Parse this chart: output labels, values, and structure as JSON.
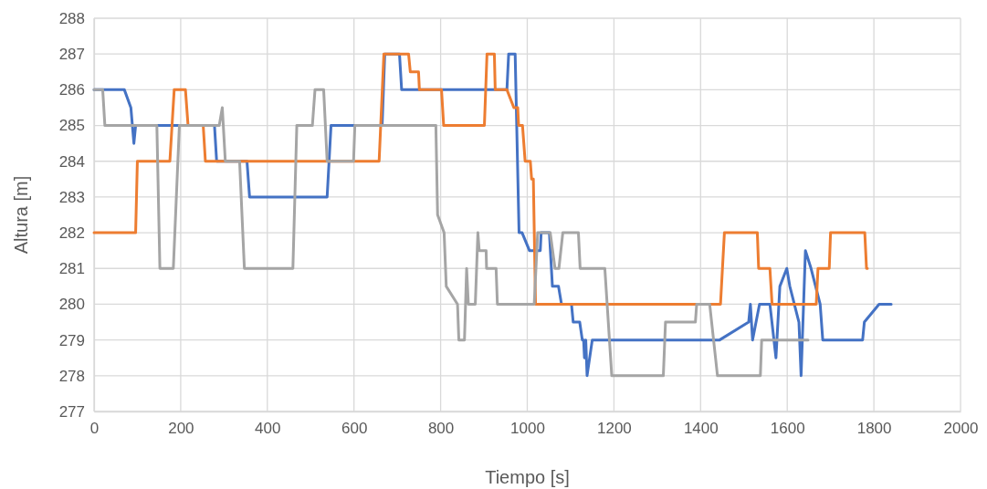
{
  "chart_data": {
    "type": "line",
    "xlabel": "Tiempo [s]",
    "ylabel": "Altura [m]",
    "xlim": [
      0,
      2000
    ],
    "xticks": [
      0,
      200,
      400,
      600,
      800,
      1000,
      1200,
      1400,
      1600,
      1800,
      2000
    ],
    "ylim": [
      277,
      288
    ],
    "yticks": [
      277,
      278,
      279,
      280,
      281,
      282,
      283,
      284,
      285,
      286,
      287,
      288
    ],
    "grid": true,
    "marker": "none",
    "line_style": "solid",
    "series": [
      {
        "color": "#4472c4",
        "x": [
          0,
          70,
          85,
          92,
          96,
          278,
          283,
          353,
          359,
          538,
          547,
          665,
          671,
          705,
          710,
          953,
          957,
          972,
          981,
          988,
          1005,
          1030,
          1032,
          1051,
          1058,
          1072,
          1079,
          1102,
          1106,
          1121,
          1127,
          1130,
          1132,
          1135,
          1138,
          1150,
          1444,
          1511,
          1515,
          1520,
          1536,
          1560,
          1574,
          1583,
          1599,
          1606,
          1627,
          1632,
          1642,
          1655,
          1676,
          1682,
          1774,
          1778,
          1812,
          1840
        ],
        "values": [
          286,
          286,
          285.5,
          284.5,
          285,
          285,
          284,
          284,
          283,
          283,
          285,
          285,
          287,
          287,
          286,
          286,
          287,
          287,
          282,
          282,
          281.5,
          281.5,
          282,
          282,
          280.5,
          280.5,
          280,
          280,
          279.5,
          279.5,
          279,
          279,
          278.5,
          279,
          278,
          279,
          279,
          279.5,
          280,
          279,
          280,
          280,
          278.5,
          280.5,
          281,
          280.5,
          279.5,
          278,
          281.5,
          281,
          280,
          279,
          279,
          279.5,
          280,
          280
        ]
      },
      {
        "color": "#ed7d31",
        "x": [
          0,
          96,
          100,
          175,
          185,
          211,
          217,
          252,
          257,
          658,
          669,
          726,
          730,
          749,
          751,
          802,
          807,
          901,
          907,
          924,
          926,
          953,
          969,
          978,
          980,
          989,
          995,
          1007,
          1010,
          1014,
          1019,
          1446,
          1455,
          1531,
          1534,
          1560,
          1565,
          1667,
          1671,
          1697,
          1700,
          1779,
          1783,
          1785
        ],
        "values": [
          282,
          282,
          284,
          284,
          286,
          286,
          285,
          285,
          284,
          284,
          287,
          287,
          286.5,
          286.5,
          286,
          286,
          285,
          285,
          287,
          287,
          286,
          286,
          285.5,
          285.5,
          285,
          285,
          284,
          284,
          283.5,
          283.5,
          280,
          280,
          282,
          282,
          281,
          281,
          280,
          280,
          281,
          281,
          282,
          282,
          281,
          281
        ]
      },
      {
        "color": "#a5a5a5",
        "x": [
          0,
          20,
          25,
          145,
          152,
          183,
          197,
          289,
          296,
          303,
          336,
          347,
          459,
          468,
          504,
          510,
          530,
          538,
          599,
          602,
          789,
          793,
          808,
          813,
          839,
          842,
          855,
          860,
          864,
          868,
          880,
          886,
          889,
          905,
          906,
          928,
          931,
          1016,
          1024,
          1053,
          1064,
          1073,
          1082,
          1118,
          1122,
          1179,
          1195,
          1314,
          1319,
          1388,
          1391,
          1421,
          1439,
          1538,
          1541,
          1648
        ],
        "values": [
          286,
          286,
          285,
          285,
          281,
          281,
          285,
          285,
          285.5,
          284,
          284,
          281,
          281,
          285,
          285,
          286,
          286,
          284,
          284,
          285,
          285,
          282.5,
          282,
          280.5,
          280,
          279,
          279,
          281,
          280,
          280,
          280,
          282,
          281.5,
          281.5,
          281,
          281,
          280,
          280,
          282,
          282,
          281,
          281,
          282,
          282,
          281,
          281,
          278,
          278,
          279.5,
          279.5,
          280,
          280,
          278,
          278,
          279,
          279
        ]
      }
    ]
  }
}
